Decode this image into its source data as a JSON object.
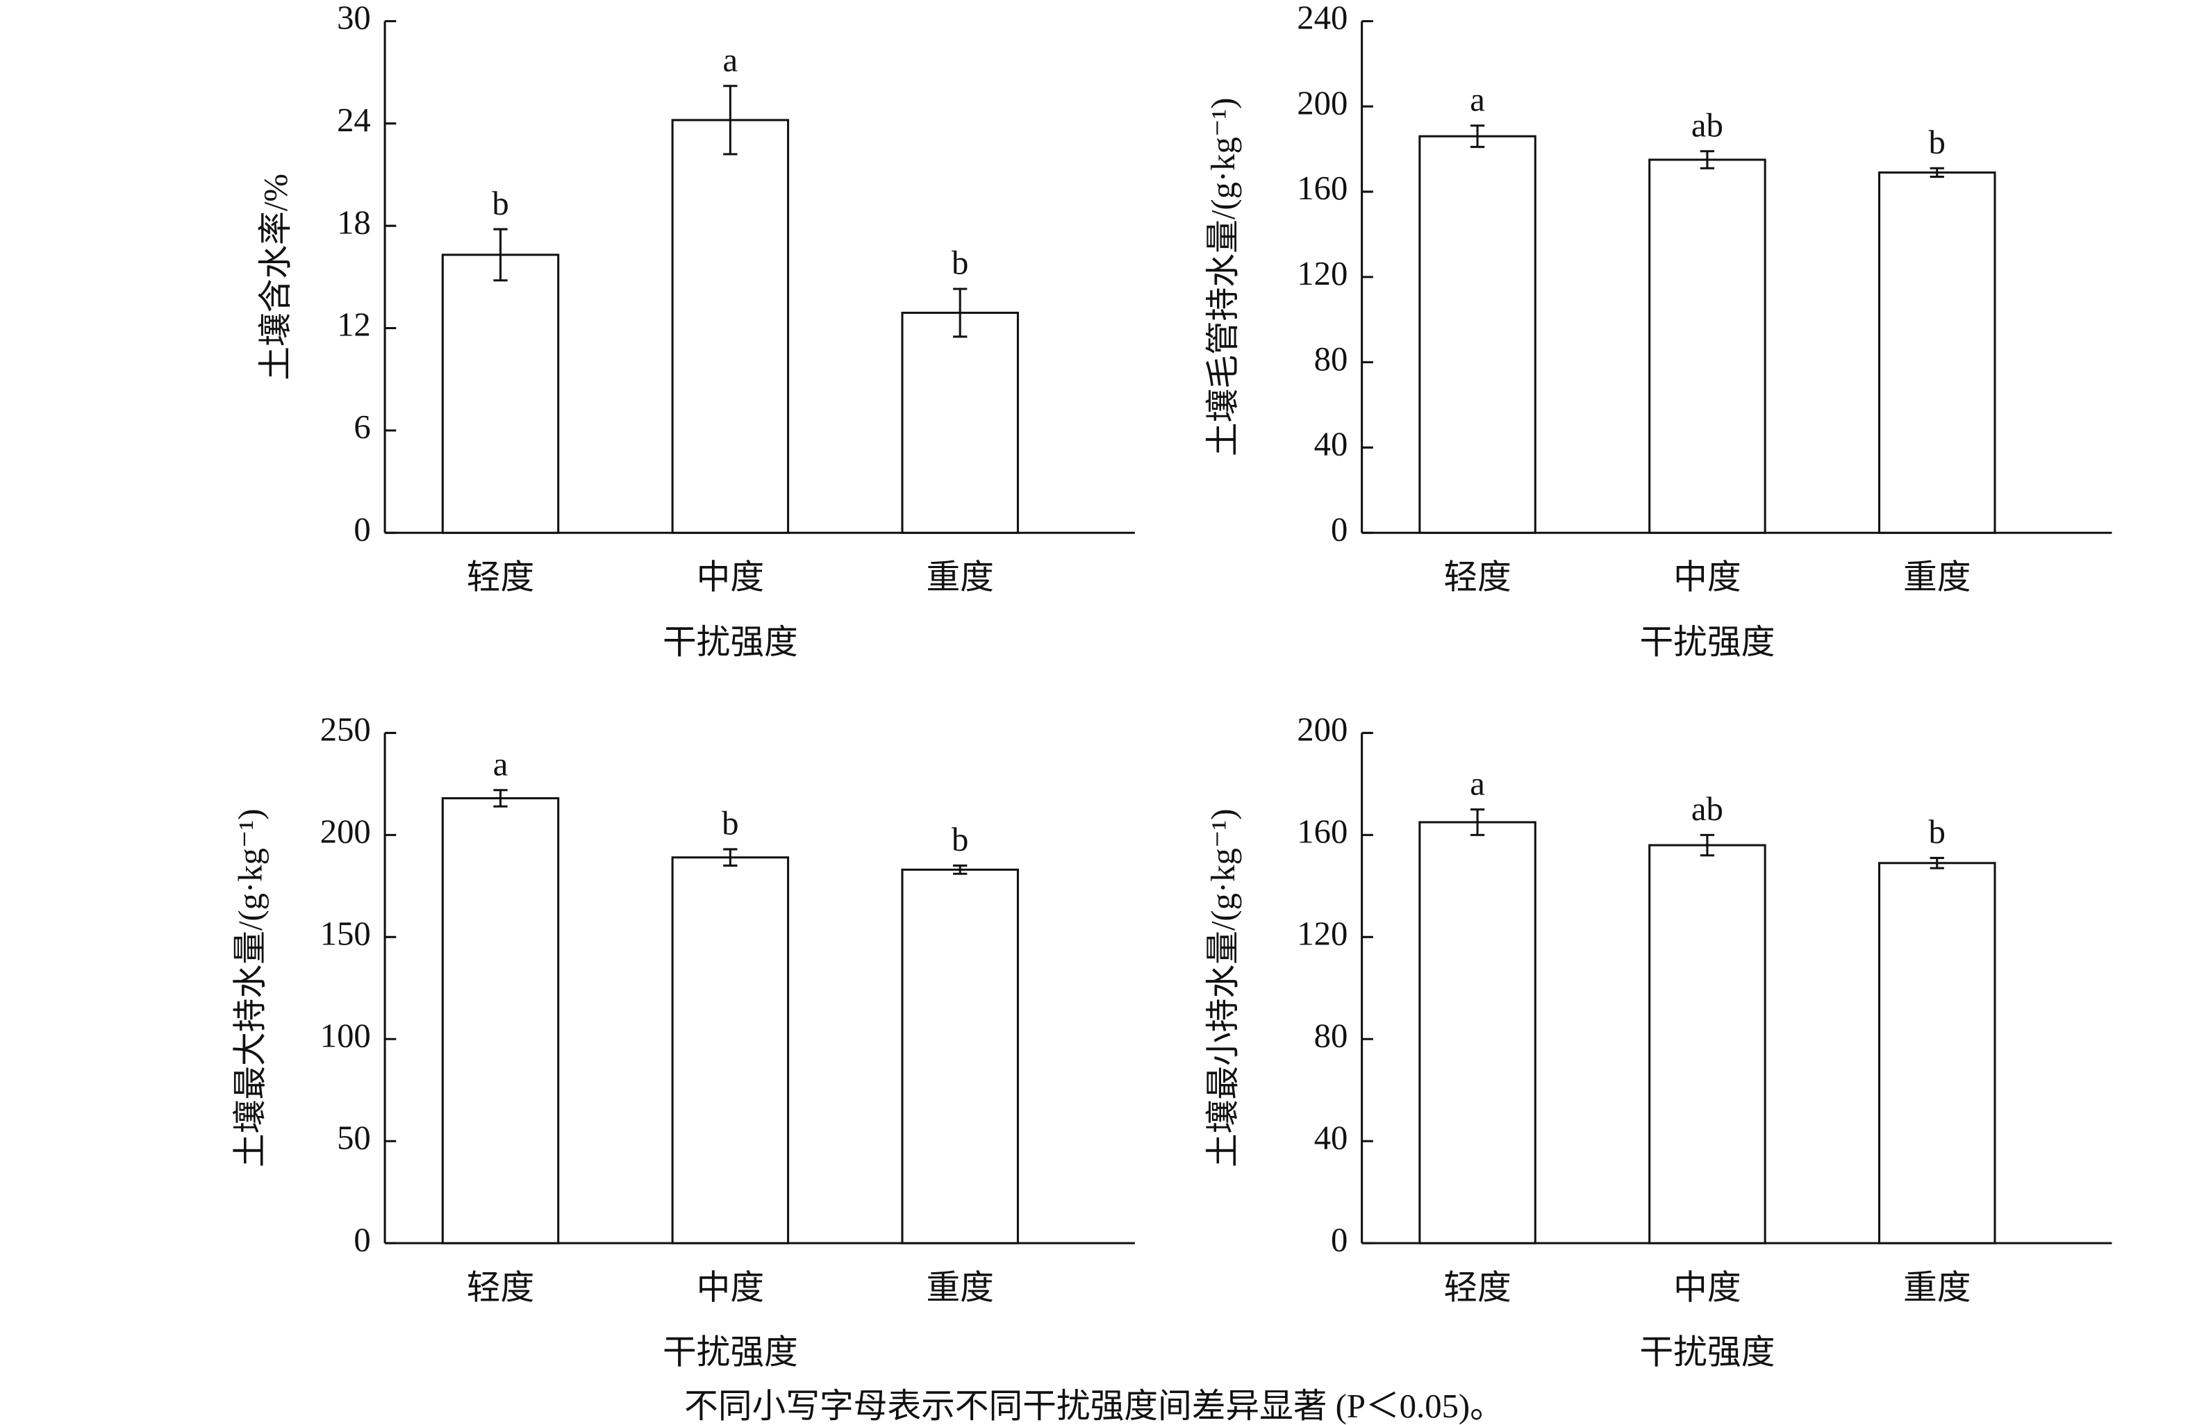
{
  "chart_data": [
    {
      "type": "bar",
      "ylabel": "土壤含水率/%",
      "xlabel": "干扰强度",
      "categories": [
        "轻度",
        "中度",
        "重度"
      ],
      "values": [
        16.3,
        24.2,
        12.9
      ],
      "errors": [
        1.5,
        2.0,
        1.4
      ],
      "letters": [
        "b",
        "a",
        "b"
      ],
      "ylim": [
        0,
        30
      ],
      "yticks": [
        0,
        6,
        12,
        18,
        24,
        30
      ],
      "color": "#ffffff"
    },
    {
      "type": "bar",
      "ylabel": "土壤毛管持水量/(g·kg⁻¹)",
      "xlabel": "干扰强度",
      "categories": [
        "轻度",
        "中度",
        "重度"
      ],
      "values": [
        186,
        175,
        169
      ],
      "errors": [
        5,
        4,
        2
      ],
      "letters": [
        "a",
        "ab",
        "b"
      ],
      "ylim": [
        0,
        240
      ],
      "yticks": [
        0,
        40,
        80,
        120,
        160,
        200,
        240
      ],
      "color": "#ffffff"
    },
    {
      "type": "bar",
      "ylabel": "土壤最大持水量/(g·kg⁻¹)",
      "xlabel": "干扰强度",
      "categories": [
        "轻度",
        "中度",
        "重度"
      ],
      "values": [
        218,
        189,
        183
      ],
      "errors": [
        4,
        4,
        2
      ],
      "letters": [
        "a",
        "b",
        "b"
      ],
      "ylim": [
        0,
        250
      ],
      "yticks": [
        0,
        50,
        100,
        150,
        200,
        250
      ],
      "color": "#ffffff"
    },
    {
      "type": "bar",
      "ylabel": "土壤最小持水量/(g·kg⁻¹)",
      "xlabel": "干扰强度",
      "categories": [
        "轻度",
        "中度",
        "重度"
      ],
      "values": [
        165,
        156,
        149
      ],
      "errors": [
        5,
        4,
        2
      ],
      "letters": [
        "a",
        "ab",
        "b"
      ],
      "ylim": [
        0,
        200
      ],
      "yticks": [
        0,
        40,
        80,
        120,
        160,
        200
      ],
      "color": "#ffffff"
    }
  ],
  "note": "不同小写字母表示不同干扰强度间差异显著 (P＜0.05)。"
}
